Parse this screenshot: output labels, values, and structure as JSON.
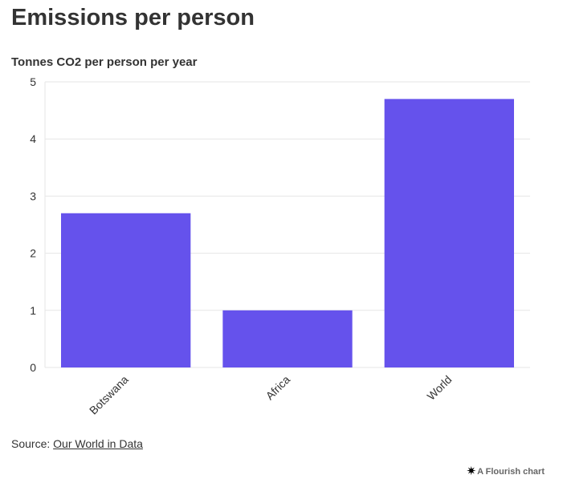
{
  "chart_data": {
    "type": "bar",
    "title": "Emissions per person",
    "subtitle": "Tonnes CO2 per person per year",
    "categories": [
      "Botswana",
      "Africa",
      "World"
    ],
    "values": [
      2.7,
      1.0,
      4.7
    ],
    "ylim": [
      0,
      5
    ],
    "yticks": [
      0,
      1,
      2,
      3,
      4,
      5
    ],
    "xlabel": "",
    "ylabel": "",
    "grid": true,
    "bar_color": "#6552ec"
  },
  "footer": {
    "source_prefix": "Source: ",
    "source_link": "Our World in Data",
    "credit_icon": "flourish-star-icon",
    "credit_text": "A Flourish chart"
  }
}
